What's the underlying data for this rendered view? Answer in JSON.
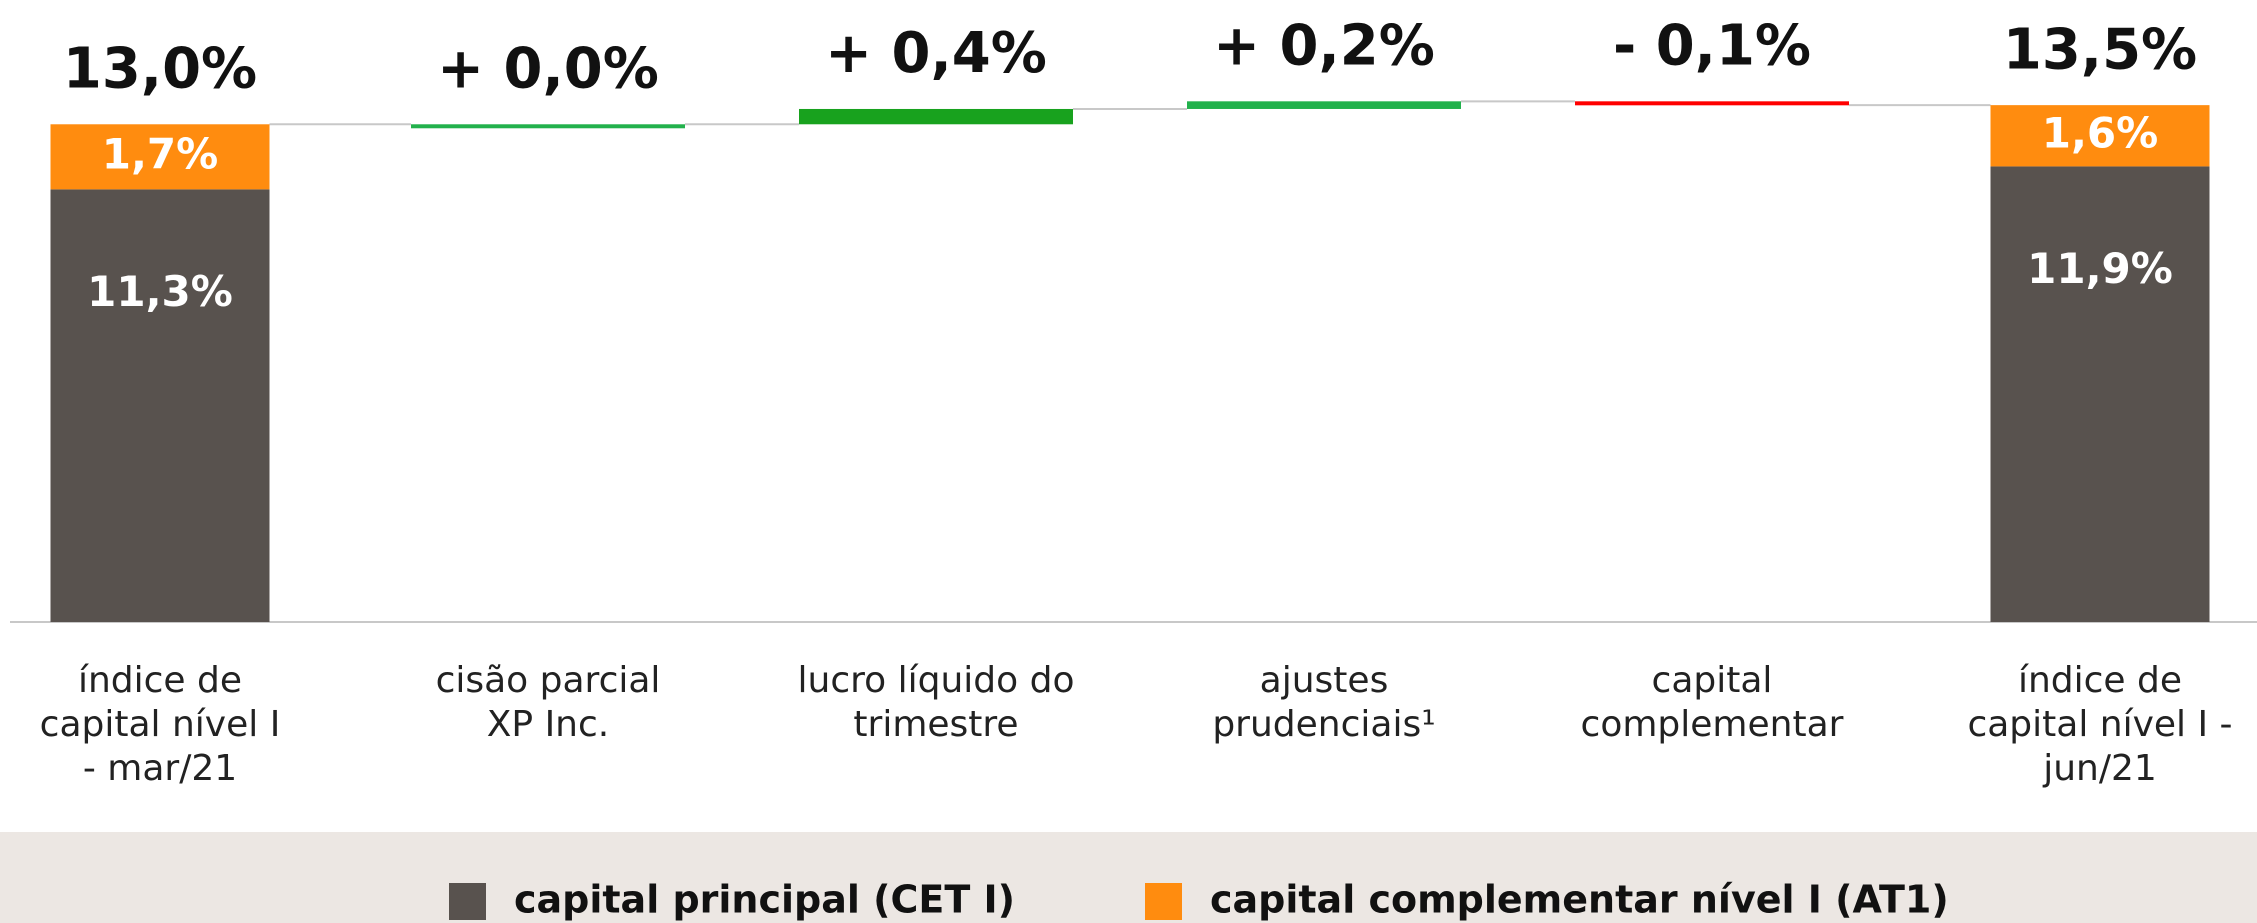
{
  "chart_data": {
    "type": "waterfall",
    "categories": [
      [
        "índice de",
        "capital nível I",
        "- mar/21"
      ],
      [
        "cisão parcial",
        "XP Inc."
      ],
      [
        "lucro líquido do",
        "trimestre"
      ],
      [
        "ajustes",
        "prudenciais¹"
      ],
      [
        "capital",
        "complementar"
      ],
      [
        "índice de",
        "capital nível I  -",
        "jun/21"
      ]
    ],
    "series": [
      {
        "name": "capital principal (CET I)",
        "color": "#58524e",
        "values": [
          11.3,
          null,
          null,
          null,
          null,
          11.9
        ],
        "value_labels": [
          "11,3%",
          null,
          null,
          null,
          null,
          "11,9%"
        ]
      },
      {
        "name": "capital complementar nível I (AT1)",
        "color": "#ff8c0f",
        "values": [
          1.7,
          null,
          null,
          null,
          null,
          1.6
        ],
        "value_labels": [
          "1,7%",
          null,
          null,
          null,
          null,
          "1,6%"
        ]
      }
    ],
    "totals": {
      "values": [
        13.0,
        null,
        null,
        null,
        null,
        13.5
      ],
      "value_labels": [
        "13,0%",
        null,
        null,
        null,
        null,
        "13,5%"
      ]
    },
    "changes": {
      "values": [
        null,
        0.0,
        0.4,
        0.2,
        -0.1,
        null
      ],
      "value_labels": [
        null,
        "+ 0,0%",
        "+ 0,4%",
        "+ 0,2%",
        "- 0,1%",
        null
      ],
      "colors": [
        null,
        "#22b14c",
        "#18a21e",
        "#22b14c",
        "#ff0000",
        null
      ]
    },
    "ylim": [
      0,
      14
    ]
  }
}
